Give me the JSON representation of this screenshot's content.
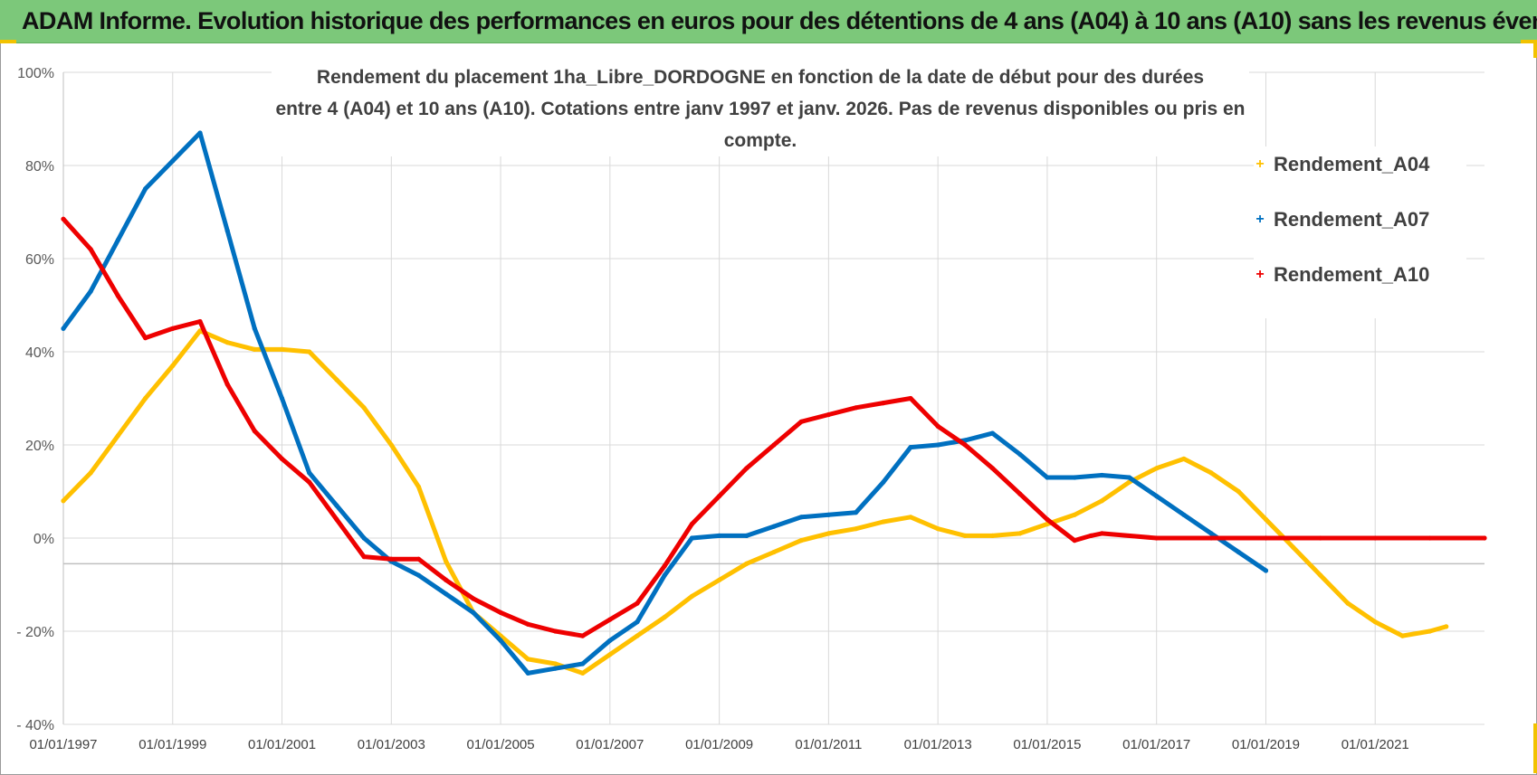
{
  "banner": {
    "title": "ADAM Informe. Evolution historique des performances en euros pour des détentions de 4 ans (A04) à 10 ans (A10) sans les revenus éventuels"
  },
  "colors": {
    "banner": "#7cc87a",
    "corner_accent": "#f2c200",
    "a04": "#ffc000",
    "a07": "#0070c0",
    "a10": "#ee0000"
  },
  "chart_data": {
    "type": "line",
    "title_line1": "Rendement du placement 1ha_Libre_DORDOGNE en fonction de la date de début pour des durées",
    "title_line2": "entre 4 (A04) et 10 ans (A10).  Cotations entre janv 1997 et janv. 2026. Pas de revenus disponibles ou pris  en compte.",
    "xlabel": "",
    "ylabel": "",
    "xlim": [
      1997.0,
      2023.0
    ],
    "ylim": [
      -40,
      100
    ],
    "y_ticks": [
      100,
      80,
      60,
      40,
      20,
      0,
      -20,
      -40
    ],
    "y_tick_labels": [
      "100%",
      "80%",
      "60%",
      "40%",
      "20%",
      "0%",
      "- 20%",
      "- 40%"
    ],
    "x_ticks": [
      1997,
      1999,
      2001,
      2003,
      2005,
      2007,
      2009,
      2011,
      2013,
      2015,
      2017,
      2019,
      2021
    ],
    "x_tick_labels": [
      "01/01/1997",
      "01/01/1999",
      "01/01/2001",
      "01/01/2003",
      "01/01/2005",
      "01/01/2007",
      "01/01/2009",
      "01/01/2011",
      "01/01/2013",
      "01/01/2015",
      "01/01/2017",
      "01/01/2019",
      "01/01/2021"
    ],
    "legend_position": "top-right",
    "series": [
      {
        "name": "Rendement_A04",
        "color": "#ffc000",
        "x": [
          1997.0,
          1997.5,
          1998.0,
          1998.5,
          1999.0,
          1999.5,
          2000.0,
          2000.5,
          2001.0,
          2001.5,
          2002.0,
          2002.5,
          2003.0,
          2003.5,
          2004.0,
          2004.5,
          2005.0,
          2005.5,
          2006.0,
          2006.5,
          2007.0,
          2007.5,
          2008.0,
          2008.5,
          2009.0,
          2009.5,
          2010.0,
          2010.5,
          2011.0,
          2011.5,
          2012.0,
          2012.5,
          2013.0,
          2013.5,
          2014.0,
          2014.5,
          2015.0,
          2015.5,
          2016.0,
          2016.5,
          2017.0,
          2017.5,
          2018.0,
          2018.5,
          2019.0,
          2019.5,
          2020.0,
          2020.5,
          2021.0,
          2021.5,
          2022.0,
          2022.3
        ],
        "values": [
          8,
          14,
          22,
          30,
          37,
          44.5,
          42,
          40.5,
          40.5,
          40,
          34,
          28,
          20,
          11,
          -5,
          -16,
          -21,
          -26,
          -27,
          -29,
          -25,
          -21,
          -17,
          -12.5,
          -9,
          -5.5,
          -3,
          -0.5,
          1,
          2,
          3.5,
          4.5,
          2,
          0.5,
          0.5,
          1,
          3,
          5,
          8,
          12,
          15,
          17,
          14,
          10,
          4,
          -2,
          -8,
          -14,
          -18,
          -21,
          -20,
          -19
        ]
      },
      {
        "name": "Rendement_A07",
        "color": "#0070c0",
        "x": [
          1997.0,
          1997.5,
          1998.0,
          1998.5,
          1999.0,
          1999.5,
          2000.0,
          2000.5,
          2001.0,
          2001.5,
          2002.0,
          2002.5,
          2003.0,
          2003.5,
          2004.0,
          2004.5,
          2005.0,
          2005.5,
          2006.0,
          2006.5,
          2007.0,
          2007.5,
          2008.0,
          2008.5,
          2009.0,
          2009.5,
          2010.0,
          2010.5,
          2011.0,
          2011.5,
          2012.0,
          2012.5,
          2013.0,
          2013.5,
          2014.0,
          2014.5,
          2015.0,
          2015.5,
          2016.0,
          2016.5,
          2017.0,
          2017.5,
          2018.0,
          2018.5,
          2019.0
        ],
        "values": [
          45,
          53,
          64,
          75,
          81,
          87,
          66,
          45,
          30,
          14,
          7,
          0,
          -5,
          -8,
          -12,
          -16,
          -22,
          -29,
          -28,
          -27,
          -22,
          -18,
          -8,
          0,
          0.5,
          0.5,
          2.5,
          4.5,
          5,
          5.5,
          12,
          19.5,
          20,
          21,
          22.5,
          18,
          13,
          13,
          13.5,
          13,
          9,
          5,
          1,
          -3,
          -7
        ]
      },
      {
        "name": "Rendement_A10",
        "color": "#ee0000",
        "x": [
          1997.0,
          1997.5,
          1998.0,
          1998.5,
          1999.0,
          1999.5,
          2000.0,
          2000.5,
          2001.0,
          2001.5,
          2002.0,
          2002.5,
          2003.0,
          2003.5,
          2004.0,
          2004.5,
          2005.0,
          2005.5,
          2006.0,
          2006.5,
          2007.0,
          2007.5,
          2008.0,
          2008.5,
          2009.0,
          2009.5,
          2010.0,
          2010.5,
          2011.0,
          2011.5,
          2012.0,
          2012.5,
          2013.0,
          2013.5,
          2014.0,
          2014.5,
          2015.0,
          2015.5,
          2015.8,
          2016.0,
          2017.0,
          2018.0,
          2019.0,
          2020.0,
          2021.0,
          2022.0,
          2023.0
        ],
        "values": [
          68.5,
          62,
          52,
          43,
          45,
          46.5,
          33,
          23,
          17,
          12,
          4,
          -4,
          -4.5,
          -4.5,
          -9,
          -13,
          -16,
          -18.5,
          -20,
          -21,
          -17.5,
          -14,
          -6,
          3,
          9,
          15,
          20,
          25,
          26.5,
          28,
          29,
          30,
          24,
          20,
          15,
          9.5,
          4,
          -0.5,
          0.5,
          1,
          0,
          0,
          0,
          0,
          0,
          0,
          0
        ]
      }
    ]
  }
}
